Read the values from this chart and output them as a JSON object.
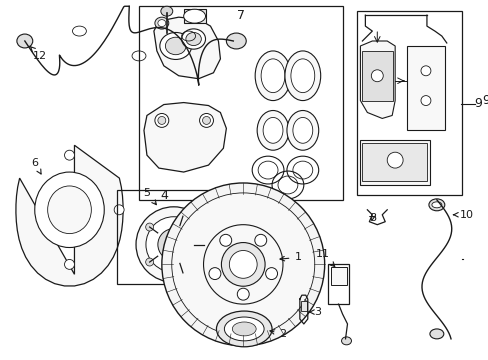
{
  "bg": "#ffffff",
  "lc": "#1a1a1a",
  "fig_w": 4.89,
  "fig_h": 3.6,
  "dpi": 100,
  "xmax": 489,
  "ymax": 360
}
